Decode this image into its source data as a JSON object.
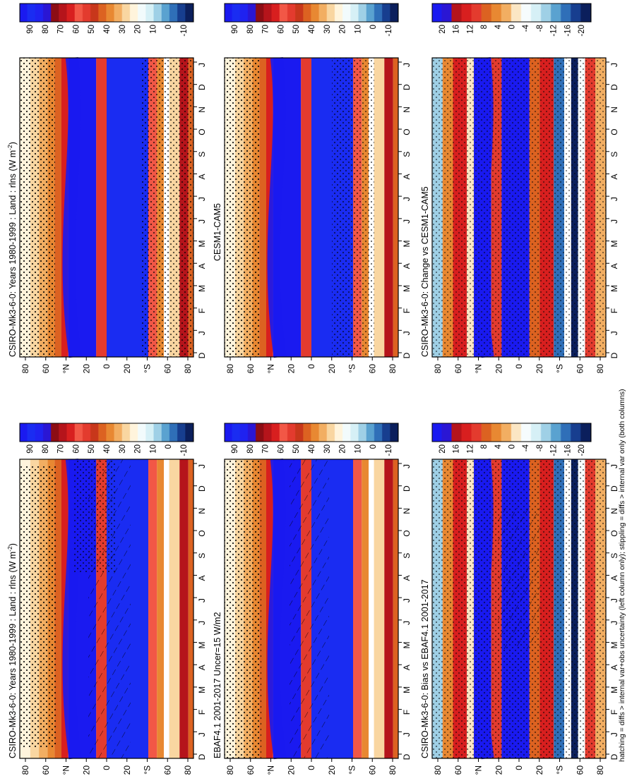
{
  "figure": {
    "footnote": "hatching = diffs > internal var+obs uncertainty (left column only); stippling = diffs > internal var only (both columns)",
    "orientation": "rotated 90 degrees counter-clockwise"
  },
  "panel_titles": {
    "model_clim": "CSIRO-Mk3-6-0: Years 1980-1999 : Land : rlns (W m",
    "ref_model_clim": "CESM1-CAM5",
    "obs_clim": "EBAF4.1 2001-2017 Uncer=15 W/m2",
    "bias": "CSIRO-Mk3-6-0: Bias vs EBAF4.1 2001-2017",
    "change": "CSIRO-Mk3-6-0: Change vs CESM1-CAM5"
  },
  "units_superscript": "-2",
  "units_close": ")",
  "chart_data": [
    {
      "type": "heatmap",
      "id": "clim-left",
      "title": "CSIRO-Mk3-6-0: Years 1980-1999 : Land : rlns (W m-2)",
      "x": [
        "D",
        "J",
        "F",
        "M",
        "A",
        "M",
        "J",
        "J",
        "A",
        "S",
        "O",
        "N",
        "D",
        "J"
      ],
      "y_ticks": [
        "80",
        "60",
        "N",
        "20",
        "0",
        "20",
        "S",
        "60",
        "80"
      ],
      "colorbar_ticks": [
        "90",
        "80",
        "70",
        "60",
        "50",
        "40",
        "30",
        "20",
        "10",
        "0",
        "-10"
      ],
      "colorbar_range": [
        -10,
        95
      ],
      "hatching": true,
      "stippling": true
    },
    {
      "type": "heatmap",
      "id": "clim-right",
      "title": "CSIRO-Mk3-6-0: Years 1980-1999 : Land : rlns (W m-2)",
      "x": [
        "D",
        "J",
        "F",
        "M",
        "A",
        "M",
        "J",
        "J",
        "A",
        "S",
        "O",
        "N",
        "D",
        "J"
      ],
      "y_ticks": [
        "80",
        "60",
        "N",
        "20",
        "0",
        "20",
        "S",
        "60",
        "80"
      ],
      "colorbar_ticks": [
        "90",
        "80",
        "70",
        "60",
        "50",
        "40",
        "30",
        "20",
        "10",
        "0",
        "-10"
      ],
      "colorbar_range": [
        -10,
        95
      ],
      "hatching": false,
      "stippling": true
    },
    {
      "type": "heatmap",
      "id": "obs",
      "title": "EBAF4.1 2001-2017 Uncer=15 W/m2",
      "x": [
        "D",
        "J",
        "F",
        "M",
        "A",
        "M",
        "J",
        "J",
        "A",
        "S",
        "O",
        "N",
        "D",
        "J"
      ],
      "y_ticks": [
        "80",
        "60",
        "N",
        "20",
        "0",
        "20",
        "S",
        "60",
        "80"
      ],
      "colorbar_ticks": [
        "90",
        "80",
        "70",
        "60",
        "50",
        "40",
        "30",
        "20",
        "10",
        "0",
        "-10"
      ],
      "colorbar_range": [
        -10,
        95
      ],
      "hatching": true,
      "stippling": true
    },
    {
      "type": "heatmap",
      "id": "ref",
      "title": "CESM1-CAM5",
      "x": [
        "D",
        "J",
        "F",
        "M",
        "A",
        "M",
        "J",
        "J",
        "A",
        "S",
        "O",
        "N",
        "D",
        "J"
      ],
      "y_ticks": [
        "80",
        "60",
        "N",
        "20",
        "0",
        "20",
        "S",
        "60",
        "80"
      ],
      "colorbar_ticks": [
        "90",
        "80",
        "70",
        "60",
        "50",
        "40",
        "30",
        "20",
        "10",
        "0",
        "-10"
      ],
      "colorbar_range": [
        -10,
        95
      ],
      "hatching": false,
      "stippling": true
    },
    {
      "type": "heatmap",
      "id": "bias",
      "title": "CSIRO-Mk3-6-0: Bias vs EBAF4.1 2001-2017",
      "x": [
        "D",
        "J",
        "F",
        "M",
        "A",
        "M",
        "J",
        "J",
        "A",
        "S",
        "O",
        "N",
        "D",
        "J"
      ],
      "y_ticks": [
        "80",
        "60",
        "N",
        "20",
        "0",
        "20",
        "S",
        "60",
        "80"
      ],
      "colorbar_ticks": [
        "20",
        "16",
        "12",
        "8",
        "4",
        "0",
        "-4",
        "-8",
        "-12",
        "-16",
        "-20"
      ],
      "colorbar_range": [
        -22,
        22
      ],
      "hatching": true,
      "stippling": true
    },
    {
      "type": "heatmap",
      "id": "change",
      "title": "CSIRO-Mk3-6-0: Change vs CESM1-CAM5",
      "x": [
        "D",
        "J",
        "F",
        "M",
        "A",
        "M",
        "J",
        "J",
        "A",
        "S",
        "O",
        "N",
        "D",
        "J"
      ],
      "y_ticks": [
        "80",
        "60",
        "N",
        "20",
        "0",
        "20",
        "S",
        "60",
        "80"
      ],
      "colorbar_ticks": [
        "20",
        "16",
        "12",
        "8",
        "4",
        "0",
        "-4",
        "-8",
        "-12",
        "-16",
        "-20"
      ],
      "colorbar_range": [
        -22,
        22
      ],
      "hatching": false,
      "stippling": true
    }
  ],
  "colors": {
    "clim_scale": [
      "#000000",
      "#0b1f5c",
      "#173e8f",
      "#2f6fb8",
      "#5aa2d0",
      "#9fd0e6",
      "#d6f0f6",
      "#f2fbfc",
      "#fff4dc",
      "#f9d6a1",
      "#f2ae62",
      "#e88832",
      "#dc6221",
      "#c8371b",
      "#e33b2e",
      "#f25746",
      "#d81f1f",
      "#b5141b",
      "#8c0d14",
      "#2a16d4",
      "#1f22f0",
      "#1a2cf2",
      "#1a1af0"
    ],
    "diff_scale": [
      "#000000",
      "#0b1f5c",
      "#173e8f",
      "#2f6fb8",
      "#5aa2d0",
      "#9fd0e6",
      "#d6f0f6",
      "#f6fcfd",
      "#fbe6c4",
      "#f2ae62",
      "#e88832",
      "#dc6221",
      "#e33b2e",
      "#d81f1f",
      "#b5141b",
      "#2a16d4",
      "#1a1af0"
    ],
    "hatch": "#000000",
    "stipple": "#000000"
  }
}
